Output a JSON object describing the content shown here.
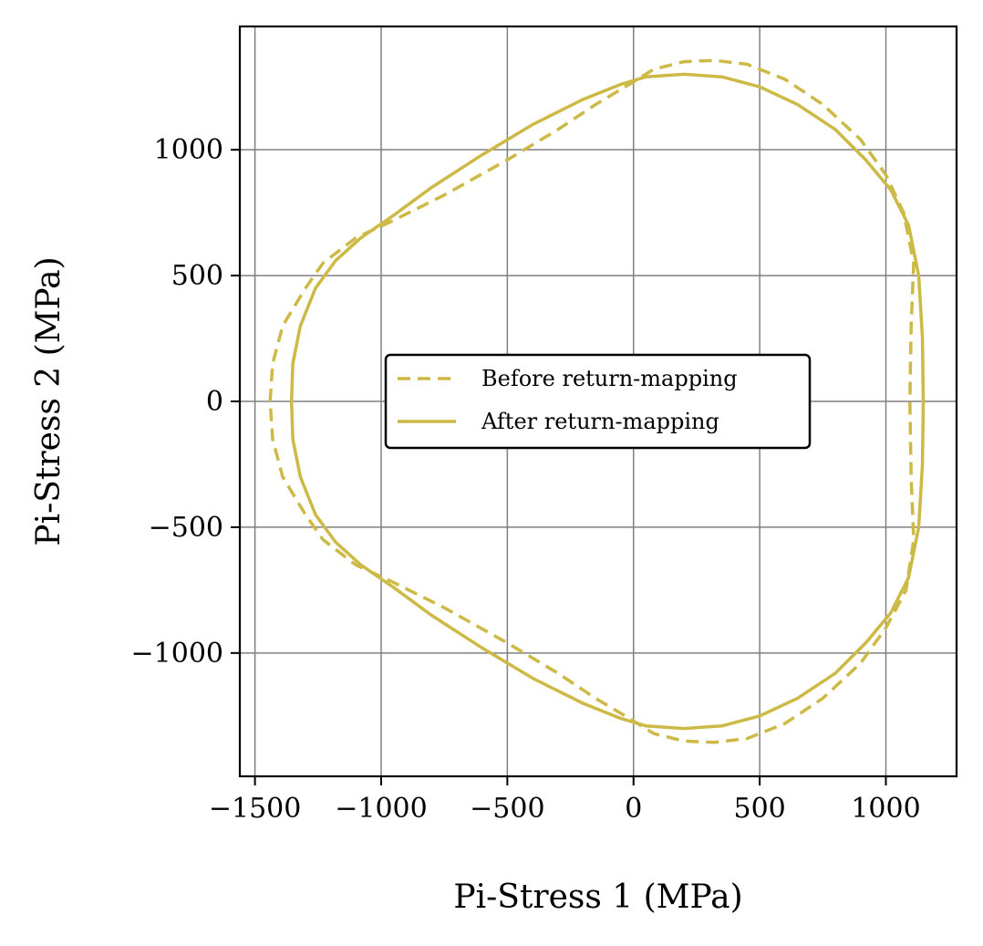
{
  "chart_data": {
    "type": "line",
    "title": "",
    "xlabel": "Pi-Stress 1 (MPa)",
    "ylabel": "Pi-Stress 2 (MPa)",
    "xlim": [
      -1560,
      1280
    ],
    "ylim": [
      -1490,
      1490
    ],
    "xticks": [
      -1500,
      -1000,
      -500,
      0,
      500,
      1000
    ],
    "yticks": [
      -1000,
      -500,
      0,
      500,
      1000
    ],
    "xtick_labels": [
      "−1500",
      "−1000",
      "−500",
      "0",
      "500",
      "1000"
    ],
    "ytick_labels": [
      "−1000",
      "−500",
      "0",
      "500",
      "1000"
    ],
    "grid": true,
    "legend_position": "center",
    "color": "#cdb946",
    "series": [
      {
        "name": "Before return-mapping",
        "style": "dashed",
        "x": [
          -1440,
          -1430,
          -1390,
          -1300,
          -1230,
          -1100,
          -950,
          -750,
          -500,
          -300,
          -150,
          0,
          80,
          200,
          320,
          450,
          600,
          750,
          900,
          1000,
          1070,
          1110,
          1100,
          1095,
          1100,
          1110,
          1080,
          1000,
          900,
          750,
          600,
          450,
          320,
          200,
          80,
          0,
          -150,
          -300,
          -500,
          -750,
          -950,
          -1100,
          -1230,
          -1300,
          -1390,
          -1430,
          -1440
        ],
        "y": [
          0,
          150,
          300,
          450,
          550,
          650,
          720,
          820,
          960,
          1080,
          1180,
          1270,
          1320,
          1350,
          1355,
          1340,
          1280,
          1180,
          1040,
          900,
          750,
          550,
          300,
          0,
          -300,
          -550,
          -750,
          -900,
          -1040,
          -1180,
          -1280,
          -1340,
          -1355,
          -1350,
          -1320,
          -1270,
          -1180,
          -1080,
          -960,
          -820,
          -720,
          -650,
          -550,
          -450,
          -300,
          -150,
          0
        ]
      },
      {
        "name": "After return-mapping",
        "style": "solid",
        "x": [
          -1355,
          -1350,
          -1320,
          -1260,
          -1180,
          -1080,
          -950,
          -800,
          -600,
          -400,
          -200,
          -50,
          50,
          200,
          350,
          500,
          650,
          800,
          920,
          1020,
          1090,
          1130,
          1145,
          1148,
          1145,
          1130,
          1090,
          1020,
          920,
          800,
          650,
          500,
          350,
          200,
          50,
          -50,
          -200,
          -400,
          -600,
          -800,
          -950,
          -1080,
          -1180,
          -1260,
          -1320,
          -1350,
          -1355
        ],
        "y": [
          0,
          150,
          300,
          450,
          560,
          650,
          740,
          850,
          980,
          1100,
          1200,
          1260,
          1290,
          1300,
          1290,
          1250,
          1180,
          1080,
          960,
          840,
          700,
          500,
          250,
          0,
          -250,
          -500,
          -700,
          -840,
          -960,
          -1080,
          -1180,
          -1250,
          -1290,
          -1300,
          -1290,
          -1260,
          -1200,
          -1100,
          -980,
          -850,
          -740,
          -650,
          -560,
          -450,
          -300,
          -150,
          0
        ]
      }
    ]
  }
}
